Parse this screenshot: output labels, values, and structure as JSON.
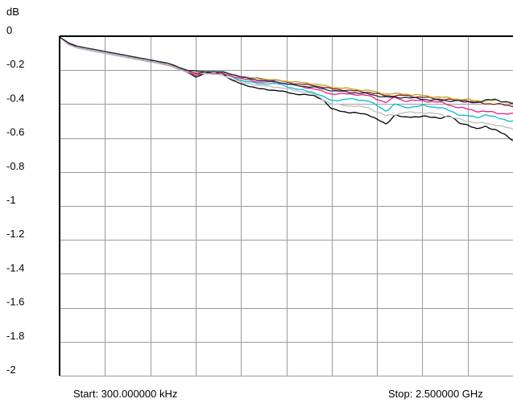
{
  "chart_data": {
    "type": "line",
    "ylabel": "dB",
    "ylim": [
      -2,
      0
    ],
    "y_ticks": [
      "0",
      "-0.2",
      "-0.4",
      "-0.6",
      "-0.8",
      "-1",
      "-1.2",
      "-1.4",
      "-1.6",
      "-1.8",
      "-2"
    ],
    "x_divisions": 10,
    "start_label": "Start: 300.000000 kHz",
    "stop_label": "Stop: 2.500000 GHz",
    "x_unit": "GHz",
    "xlim": [
      0.0003,
      2.5
    ],
    "grid": true,
    "series": [
      {
        "color": "#000000",
        "values": [
          [
            0.0003,
            -0.005
          ],
          [
            0.05,
            -0.04
          ],
          [
            0.1,
            -0.07
          ],
          [
            0.2,
            -0.09
          ],
          [
            0.3,
            -0.11
          ],
          [
            0.4,
            -0.13
          ],
          [
            0.5,
            -0.15
          ],
          [
            0.6,
            -0.17
          ],
          [
            0.7,
            -0.21
          ],
          [
            0.75,
            -0.24
          ],
          [
            0.8,
            -0.22
          ],
          [
            0.85,
            -0.21
          ],
          [
            0.9,
            -0.22
          ],
          [
            0.95,
            -0.26
          ],
          [
            1.0,
            -0.28
          ],
          [
            1.1,
            -0.31
          ],
          [
            1.2,
            -0.32
          ],
          [
            1.3,
            -0.34
          ],
          [
            1.4,
            -0.35
          ],
          [
            1.45,
            -0.37
          ],
          [
            1.5,
            -0.43
          ],
          [
            1.6,
            -0.45
          ],
          [
            1.7,
            -0.46
          ],
          [
            1.75,
            -0.49
          ],
          [
            1.8,
            -0.52
          ],
          [
            1.85,
            -0.46
          ],
          [
            1.9,
            -0.48
          ],
          [
            2.0,
            -0.47
          ],
          [
            2.05,
            -0.48
          ],
          [
            2.1,
            -0.48
          ],
          [
            2.15,
            -0.47
          ],
          [
            2.2,
            -0.51
          ],
          [
            2.25,
            -0.52
          ],
          [
            2.3,
            -0.55
          ],
          [
            2.35,
            -0.53
          ],
          [
            2.4,
            -0.55
          ],
          [
            2.45,
            -0.58
          ],
          [
            2.5,
            -0.61
          ]
        ]
      },
      {
        "color": "#00bcd4",
        "values": [
          [
            0.0003,
            -0.005
          ],
          [
            0.05,
            -0.05
          ],
          [
            0.1,
            -0.07
          ],
          [
            0.2,
            -0.09
          ],
          [
            0.3,
            -0.11
          ],
          [
            0.4,
            -0.13
          ],
          [
            0.5,
            -0.15
          ],
          [
            0.6,
            -0.17
          ],
          [
            0.7,
            -0.21
          ],
          [
            0.75,
            -0.23
          ],
          [
            0.8,
            -0.22
          ],
          [
            0.9,
            -0.22
          ],
          [
            1.0,
            -0.26
          ],
          [
            1.1,
            -0.28
          ],
          [
            1.2,
            -0.28
          ],
          [
            1.3,
            -0.31
          ],
          [
            1.4,
            -0.33
          ],
          [
            1.5,
            -0.38
          ],
          [
            1.6,
            -0.37
          ],
          [
            1.7,
            -0.38
          ],
          [
            1.8,
            -0.44
          ],
          [
            1.85,
            -0.4
          ],
          [
            1.9,
            -0.42
          ],
          [
            2.0,
            -0.41
          ],
          [
            2.1,
            -0.42
          ],
          [
            2.2,
            -0.46
          ],
          [
            2.3,
            -0.48
          ],
          [
            2.35,
            -0.46
          ],
          [
            2.4,
            -0.48
          ],
          [
            2.5,
            -0.5
          ]
        ]
      },
      {
        "color": "#e91e8c",
        "values": [
          [
            0.0003,
            -0.005
          ],
          [
            0.05,
            -0.045
          ],
          [
            0.1,
            -0.07
          ],
          [
            0.2,
            -0.09
          ],
          [
            0.3,
            -0.11
          ],
          [
            0.4,
            -0.13
          ],
          [
            0.5,
            -0.15
          ],
          [
            0.6,
            -0.17
          ],
          [
            0.7,
            -0.21
          ],
          [
            0.75,
            -0.23
          ],
          [
            0.8,
            -0.22
          ],
          [
            0.9,
            -0.22
          ],
          [
            1.0,
            -0.25
          ],
          [
            1.1,
            -0.27
          ],
          [
            1.2,
            -0.27
          ],
          [
            1.3,
            -0.29
          ],
          [
            1.4,
            -0.31
          ],
          [
            1.5,
            -0.34
          ],
          [
            1.6,
            -0.34
          ],
          [
            1.7,
            -0.35
          ],
          [
            1.8,
            -0.39
          ],
          [
            1.85,
            -0.36
          ],
          [
            1.9,
            -0.38
          ],
          [
            2.0,
            -0.38
          ],
          [
            2.1,
            -0.39
          ],
          [
            2.2,
            -0.42
          ],
          [
            2.3,
            -0.44
          ],
          [
            2.4,
            -0.45
          ],
          [
            2.5,
            -0.46
          ]
        ]
      },
      {
        "color": "#bdbdbd",
        "values": [
          [
            0.0003,
            -0.005
          ],
          [
            0.05,
            -0.05
          ],
          [
            0.1,
            -0.07
          ],
          [
            0.2,
            -0.09
          ],
          [
            0.3,
            -0.11
          ],
          [
            0.4,
            -0.13
          ],
          [
            0.5,
            -0.15
          ],
          [
            0.6,
            -0.17
          ],
          [
            0.7,
            -0.21
          ],
          [
            0.8,
            -0.22
          ],
          [
            0.9,
            -0.23
          ],
          [
            1.0,
            -0.27
          ],
          [
            1.1,
            -0.29
          ],
          [
            1.2,
            -0.3
          ],
          [
            1.3,
            -0.32
          ],
          [
            1.4,
            -0.34
          ],
          [
            1.5,
            -0.4
          ],
          [
            1.6,
            -0.41
          ],
          [
            1.7,
            -0.42
          ],
          [
            1.8,
            -0.47
          ],
          [
            1.9,
            -0.45
          ],
          [
            2.0,
            -0.45
          ],
          [
            2.1,
            -0.46
          ],
          [
            2.2,
            -0.49
          ],
          [
            2.3,
            -0.51
          ],
          [
            2.4,
            -0.52
          ],
          [
            2.5,
            -0.55
          ]
        ]
      },
      {
        "color": "#8b1a1a",
        "values": [
          [
            0.0003,
            -0.005
          ],
          [
            0.05,
            -0.04
          ],
          [
            0.1,
            -0.06
          ],
          [
            0.2,
            -0.08
          ],
          [
            0.3,
            -0.1
          ],
          [
            0.4,
            -0.12
          ],
          [
            0.5,
            -0.14
          ],
          [
            0.6,
            -0.16
          ],
          [
            0.7,
            -0.2
          ],
          [
            0.75,
            -0.22
          ],
          [
            0.8,
            -0.21
          ],
          [
            0.9,
            -0.21
          ],
          [
            1.0,
            -0.24
          ],
          [
            1.1,
            -0.25
          ],
          [
            1.2,
            -0.26
          ],
          [
            1.3,
            -0.28
          ],
          [
            1.4,
            -0.29
          ],
          [
            1.5,
            -0.31
          ],
          [
            1.6,
            -0.32
          ],
          [
            1.7,
            -0.33
          ],
          [
            1.8,
            -0.35
          ],
          [
            1.9,
            -0.35
          ],
          [
            2.0,
            -0.36
          ],
          [
            2.1,
            -0.37
          ],
          [
            2.2,
            -0.38
          ],
          [
            2.3,
            -0.39
          ],
          [
            2.4,
            -0.4
          ],
          [
            2.5,
            -0.41
          ]
        ]
      },
      {
        "color": "#c0a020",
        "values": [
          [
            0.0003,
            -0.005
          ],
          [
            0.05,
            -0.04
          ],
          [
            0.1,
            -0.06
          ],
          [
            0.2,
            -0.08
          ],
          [
            0.3,
            -0.1
          ],
          [
            0.4,
            -0.12
          ],
          [
            0.5,
            -0.14
          ],
          [
            0.6,
            -0.16
          ],
          [
            0.7,
            -0.2
          ],
          [
            0.8,
            -0.21
          ],
          [
            0.9,
            -0.21
          ],
          [
            1.0,
            -0.24
          ],
          [
            1.1,
            -0.25
          ],
          [
            1.2,
            -0.26
          ],
          [
            1.3,
            -0.27
          ],
          [
            1.4,
            -0.28
          ],
          [
            1.5,
            -0.3
          ],
          [
            1.6,
            -0.31
          ],
          [
            1.7,
            -0.32
          ],
          [
            1.8,
            -0.34
          ],
          [
            1.9,
            -0.34
          ],
          [
            2.0,
            -0.35
          ],
          [
            2.1,
            -0.36
          ],
          [
            2.2,
            -0.37
          ],
          [
            2.3,
            -0.38
          ],
          [
            2.4,
            -0.38
          ],
          [
            2.5,
            -0.39
          ]
        ]
      },
      {
        "color": "#1a2a4a",
        "values": [
          [
            0.0003,
            -0.005
          ],
          [
            0.05,
            -0.04
          ],
          [
            0.1,
            -0.06
          ],
          [
            0.2,
            -0.08
          ],
          [
            0.3,
            -0.1
          ],
          [
            0.4,
            -0.12
          ],
          [
            0.5,
            -0.14
          ],
          [
            0.6,
            -0.16
          ],
          [
            0.7,
            -0.2
          ],
          [
            0.8,
            -0.21
          ],
          [
            0.9,
            -0.21
          ],
          [
            1.0,
            -0.24
          ],
          [
            1.1,
            -0.26
          ],
          [
            1.2,
            -0.27
          ],
          [
            1.3,
            -0.29
          ],
          [
            1.4,
            -0.3
          ],
          [
            1.5,
            -0.32
          ],
          [
            1.6,
            -0.33
          ],
          [
            1.7,
            -0.34
          ],
          [
            1.8,
            -0.36
          ],
          [
            1.9,
            -0.36
          ],
          [
            2.0,
            -0.37
          ],
          [
            2.1,
            -0.38
          ],
          [
            2.2,
            -0.38
          ],
          [
            2.3,
            -0.39
          ],
          [
            2.4,
            -0.37
          ],
          [
            2.5,
            -0.4
          ]
        ]
      }
    ]
  }
}
